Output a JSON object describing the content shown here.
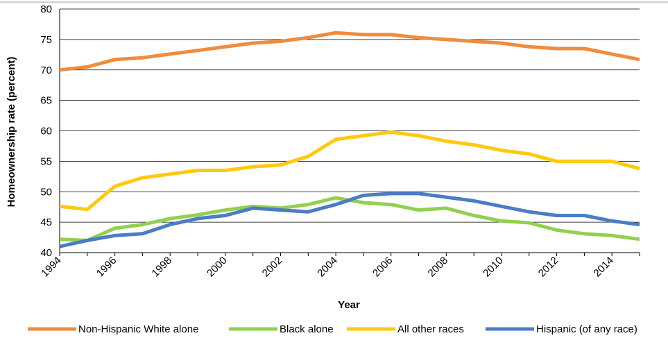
{
  "chart_data": {
    "type": "line",
    "xlabel": "Year",
    "ylabel": "Homeownership rate (percent)",
    "x": [
      1994,
      1995,
      1996,
      1997,
      1998,
      1999,
      2000,
      2001,
      2002,
      2003,
      2004,
      2005,
      2006,
      2007,
      2008,
      2009,
      2010,
      2011,
      2012,
      2013,
      2014,
      2015
    ],
    "x_tick_labels": [
      "1994",
      "1996",
      "1998",
      "2000",
      "2002",
      "2004",
      "2006",
      "2008",
      "2010",
      "2012",
      "2014"
    ],
    "ylim": [
      40,
      80
    ],
    "y_tick_labels": [
      "40",
      "45",
      "50",
      "55",
      "60",
      "65",
      "70",
      "75",
      "80"
    ],
    "grid": "horizontal",
    "legend_position": "bottom",
    "series": [
      {
        "name": "Non-Hispanic White alone",
        "color": "#f08c3c",
        "values": [
          70.0,
          70.5,
          71.7,
          72.0,
          72.6,
          73.2,
          73.8,
          74.4,
          74.7,
          75.3,
          76.1,
          75.8,
          75.8,
          75.3,
          75.0,
          74.7,
          74.4,
          73.8,
          73.5,
          73.5,
          72.6,
          71.7
        ]
      },
      {
        "name": "Black alone",
        "color": "#92d050",
        "values": [
          42.2,
          42.0,
          44.0,
          44.6,
          45.6,
          46.2,
          47.0,
          47.6,
          47.3,
          47.9,
          49.0,
          48.2,
          47.9,
          47.0,
          47.3,
          46.1,
          45.2,
          44.9,
          43.7,
          43.1,
          42.8,
          42.2
        ]
      },
      {
        "name": "All other races",
        "color": "#ffc90e",
        "values": [
          47.6,
          47.1,
          50.9,
          52.3,
          52.9,
          53.5,
          53.5,
          54.1,
          54.4,
          55.8,
          58.6,
          59.2,
          59.8,
          59.2,
          58.3,
          57.7,
          56.8,
          56.2,
          55.0,
          55.0,
          55.0,
          53.8
        ]
      },
      {
        "name": "Hispanic (of any race)",
        "color": "#4a7dc4",
        "values": [
          41.0,
          42.0,
          42.8,
          43.1,
          44.6,
          45.6,
          46.1,
          47.3,
          47.0,
          46.7,
          47.9,
          49.4,
          49.7,
          49.7,
          49.1,
          48.5,
          47.6,
          46.7,
          46.1,
          46.1,
          45.2,
          44.6
        ]
      }
    ]
  }
}
